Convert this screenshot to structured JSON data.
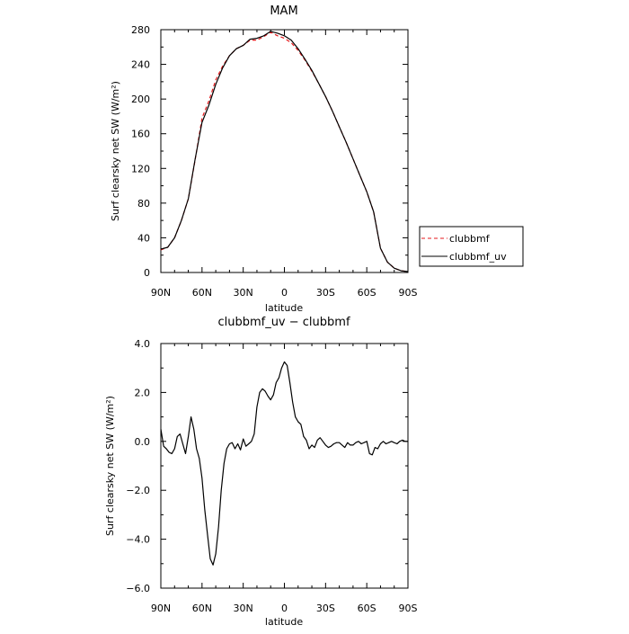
{
  "chart_data": [
    {
      "type": "line",
      "title": "MAM",
      "xlabel": "latitude",
      "ylabel": "Surf clearsky net SW (W/m²)",
      "xlim": [
        90,
        -90
      ],
      "ylim": [
        0,
        280
      ],
      "yticks": [
        0,
        40,
        80,
        120,
        160,
        200,
        240,
        280
      ],
      "ytick_labels": [
        "0",
        "40",
        "80",
        "120",
        "160",
        "200",
        "240",
        "280"
      ],
      "xticks": [
        90,
        60,
        30,
        0,
        -30,
        -60,
        -90
      ],
      "xtick_labels": [
        "90N",
        "60N",
        "30N",
        "0",
        "30S",
        "60S",
        "90S"
      ],
      "grid": false,
      "legend": "right",
      "series": [
        {
          "name": "clubbmf",
          "color": "#e41a1c",
          "dash": "dashed",
          "x": [
            90,
            85,
            80,
            75,
            70,
            65,
            60,
            55,
            50,
            45,
            40,
            35,
            30,
            25,
            20,
            15,
            10,
            5,
            0,
            -5,
            -10,
            -15,
            -20,
            -25,
            -30,
            -35,
            -40,
            -45,
            -50,
            -55,
            -60,
            -65,
            -70,
            -75,
            -80,
            -85,
            -90
          ],
          "y": [
            26,
            29,
            40,
            60,
            85,
            130,
            178,
            198,
            222,
            238,
            250,
            258,
            262,
            268,
            268,
            272,
            277,
            273,
            270,
            265,
            256,
            245,
            232,
            218,
            203,
            186,
            168,
            150,
            131,
            112,
            93,
            70,
            28,
            12,
            5,
            2,
            1
          ]
        },
        {
          "name": "clubbmf_uv",
          "color": "#000000",
          "dash": "solid",
          "x": [
            90,
            85,
            80,
            75,
            70,
            65,
            60,
            55,
            50,
            45,
            40,
            35,
            30,
            25,
            20,
            15,
            10,
            5,
            0,
            -5,
            -10,
            -15,
            -20,
            -25,
            -30,
            -35,
            -40,
            -45,
            -50,
            -55,
            -60,
            -65,
            -70,
            -75,
            -80,
            -85,
            -90
          ],
          "y": [
            27,
            29,
            40,
            60,
            85,
            131,
            173,
            193,
            217,
            236,
            250,
            258,
            262,
            269,
            270,
            273,
            278,
            276,
            273,
            268,
            258,
            246,
            233,
            218,
            203,
            186,
            168,
            150,
            131,
            112,
            93,
            70,
            28,
            12,
            5,
            2,
            1
          ]
        }
      ]
    },
    {
      "type": "line",
      "title": "clubbmf_uv − clubbmf",
      "xlabel": "latitude",
      "ylabel": "Surf clearsky net SW (W/m²)",
      "xlim": [
        90,
        -90
      ],
      "ylim": [
        -6,
        4
      ],
      "yticks": [
        -6,
        -4,
        -2,
        0,
        2,
        4
      ],
      "ytick_labels": [
        "−6.0",
        "−4.0",
        "−2.0",
        "0.0",
        "2.0",
        "4.0"
      ],
      "xticks": [
        90,
        60,
        30,
        0,
        -30,
        -60,
        -90
      ],
      "xtick_labels": [
        "90N",
        "60N",
        "30N",
        "0",
        "30S",
        "60S",
        "90S"
      ],
      "grid": false,
      "series": [
        {
          "name": "",
          "color": "#000000",
          "dash": "solid",
          "x": [
            90,
            88,
            86,
            84,
            82,
            80,
            78,
            76,
            74,
            72,
            70,
            68,
            66,
            64,
            62,
            60,
            58,
            56,
            54,
            52,
            50,
            48,
            46,
            44,
            42,
            40,
            38,
            36,
            34,
            32,
            30,
            28,
            26,
            24,
            22,
            20,
            18,
            16,
            14,
            12,
            10,
            8,
            6,
            4,
            2,
            0,
            -2,
            -4,
            -6,
            -8,
            -10,
            -12,
            -14,
            -16,
            -18,
            -20,
            -22,
            -24,
            -26,
            -28,
            -30,
            -32,
            -34,
            -36,
            -38,
            -40,
            -42,
            -44,
            -46,
            -48,
            -50,
            -52,
            -54,
            -56,
            -58,
            -60,
            -62,
            -64,
            -66,
            -68,
            -70,
            -72,
            -74,
            -76,
            -78,
            -80,
            -82,
            -84,
            -86,
            -88,
            -90
          ],
          "y": [
            0.5,
            -0.2,
            -0.3,
            -0.45,
            -0.5,
            -0.3,
            0.2,
            0.3,
            -0.1,
            -0.5,
            0.2,
            1.0,
            0.5,
            -0.3,
            -0.7,
            -1.5,
            -2.8,
            -3.8,
            -4.8,
            -5.05,
            -4.6,
            -3.5,
            -2.0,
            -0.9,
            -0.3,
            -0.1,
            -0.05,
            -0.3,
            -0.1,
            -0.35,
            0.1,
            -0.2,
            -0.1,
            0.0,
            0.3,
            1.4,
            2.0,
            2.15,
            2.05,
            1.85,
            1.7,
            1.9,
            2.4,
            2.6,
            3.0,
            3.25,
            3.1,
            2.4,
            1.6,
            1.0,
            0.8,
            0.7,
            0.2,
            0.05,
            -0.3,
            -0.15,
            -0.25,
            0.05,
            0.15,
            0.0,
            -0.15,
            -0.25,
            -0.2,
            -0.1,
            -0.05,
            -0.05,
            -0.15,
            -0.25,
            -0.05,
            -0.15,
            -0.15,
            -0.05,
            0.0,
            -0.1,
            -0.05,
            0.0,
            -0.5,
            -0.55,
            -0.25,
            -0.3,
            -0.1,
            0.0,
            -0.1,
            -0.05,
            0.0,
            -0.05,
            -0.1,
            0.0,
            0.05,
            0.0,
            0.0
          ]
        }
      ]
    }
  ]
}
